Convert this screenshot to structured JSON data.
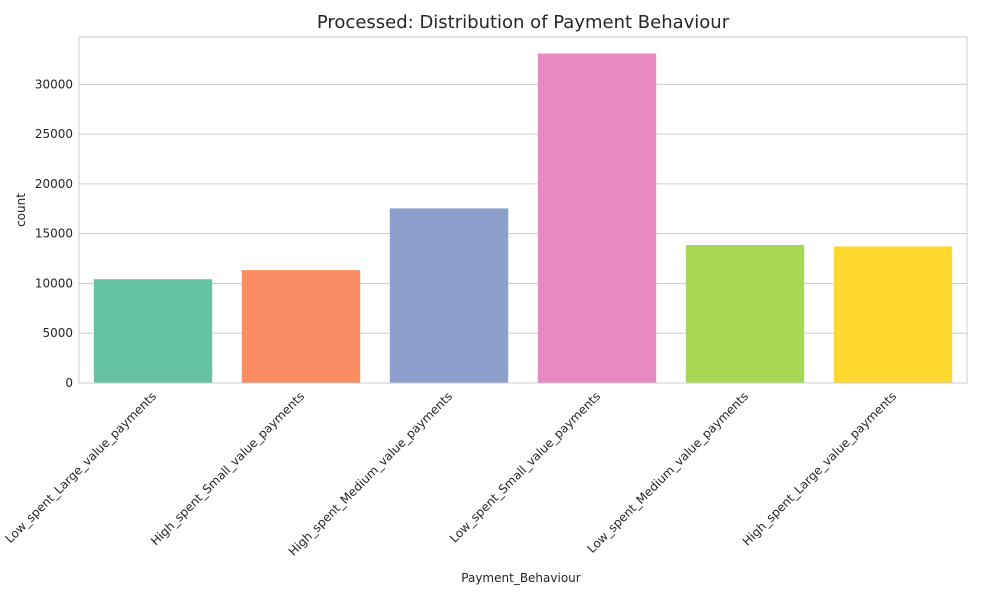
{
  "chart_data": {
    "type": "bar",
    "title": "Processed: Distribution of Payment Behaviour",
    "xlabel": "Payment_Behaviour",
    "ylabel": "count",
    "categories": [
      "Low_spent_Large_value_payments",
      "High_spent_Small_value_payments",
      "High_spent_Medium_value_payments",
      "Low_spent_Small_value_payments",
      "Low_spent_Medium_value_payments",
      "High_spent_Large_value_payments"
    ],
    "values": [
      10425,
      11340,
      17540,
      33103,
      13861,
      13721
    ],
    "colors": [
      "#66c2a5",
      "#fc8d62",
      "#8da0cb",
      "#e78ac3",
      "#a6d854",
      "#ffd92f"
    ],
    "yticks": [
      0,
      5000,
      10000,
      15000,
      20000,
      25000,
      30000
    ],
    "ylim": [
      0,
      34758
    ],
    "grid": true,
    "legend": "none"
  }
}
